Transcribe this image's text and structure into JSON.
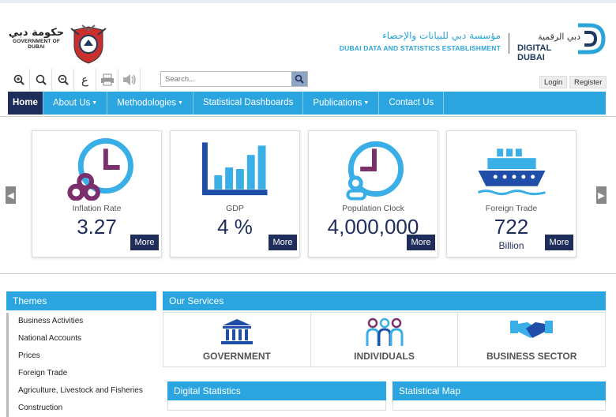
{
  "header": {
    "gov_ar": "حكومة دبي",
    "gov_en": "GOVERNMENT OF DUBAI",
    "dsc_ar": "مؤسسة دبي للبيانات والإحصاء",
    "dsc_en": "DUBAI DATA AND STATISTICS ESTABLISHMENT",
    "dd_ar": "دبي الرقمية",
    "dd_en": "DIGITAL DUBAI"
  },
  "toolbar": {
    "tools": [
      "zoom-in-icon",
      "magnifier-icon",
      "zoom-out-icon",
      "arabic-language-icon",
      "print-icon",
      "speaker-icon"
    ],
    "arabic_glyph": "ع",
    "search_placeholder": "Search...",
    "login": "Login",
    "register": "Register"
  },
  "nav": {
    "items": [
      "Home",
      "About Us",
      "Methodologies",
      "Statistical Dashboards",
      "Publications",
      "Contact Us"
    ]
  },
  "cards": [
    {
      "label": "Inflation Rate",
      "value": "3.27",
      "unit": "",
      "more": "More"
    },
    {
      "label": "GDP",
      "value": "4 %",
      "unit": "",
      "more": "More"
    },
    {
      "label": "Population Clock",
      "value": "4,000,000",
      "unit": "",
      "more": "More"
    },
    {
      "label": "Foreign Trade",
      "value": "722",
      "unit": "Billion",
      "more": "More"
    }
  ],
  "themes": {
    "title": "Themes",
    "items": [
      "Business Activities",
      "National Accounts",
      "Prices",
      "Foreign Trade",
      "Agriculture, Livestock and Fisheries",
      "Construction"
    ]
  },
  "services": {
    "title": "Our Services",
    "items": [
      "GOVERNMENT",
      "INDIVIDUALS",
      "BUSINESS SECTOR"
    ]
  },
  "digital_statistics": "Digital Statistics",
  "statistical_map": "Statistical Map",
  "colors": {
    "primary": "#2aa5e0",
    "navy": "#1f2d5a",
    "purple": "#7b2f6b",
    "accent": "#3aaee6"
  }
}
